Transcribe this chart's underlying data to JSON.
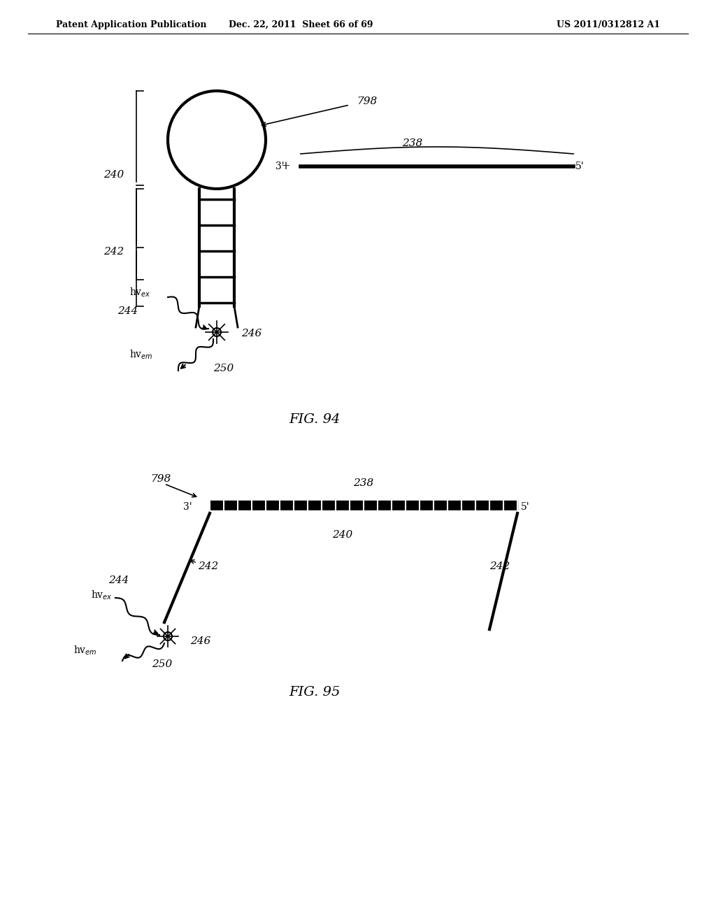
{
  "bg_color": "#ffffff",
  "line_color": "#000000",
  "header_left": "Patent Application Publication",
  "header_mid": "Dec. 22, 2011  Sheet 66 of 69",
  "header_right": "US 2011/0312812 A1",
  "fig94_label": "FIG. 94",
  "fig95_label": "FIG. 95",
  "label_240_fig94": "240",
  "label_242_fig94": "242",
  "label_244_fig94": "244",
  "label_246_fig94": "246",
  "label_250_fig94": "250",
  "label_238_fig94": "238",
  "label_798_fig94": "798",
  "label_240_fig95": "240",
  "label_242_fig95": "242",
  "label_244_fig95": "244",
  "label_246_fig95": "246",
  "label_250_fig95": "250",
  "label_238_fig95": "238",
  "label_798_fig95": "798",
  "label_3prime": "3'",
  "label_5prime": "5'",
  "label_hvex": "hvₑₓ",
  "label_hvem": "hvₑₘ"
}
